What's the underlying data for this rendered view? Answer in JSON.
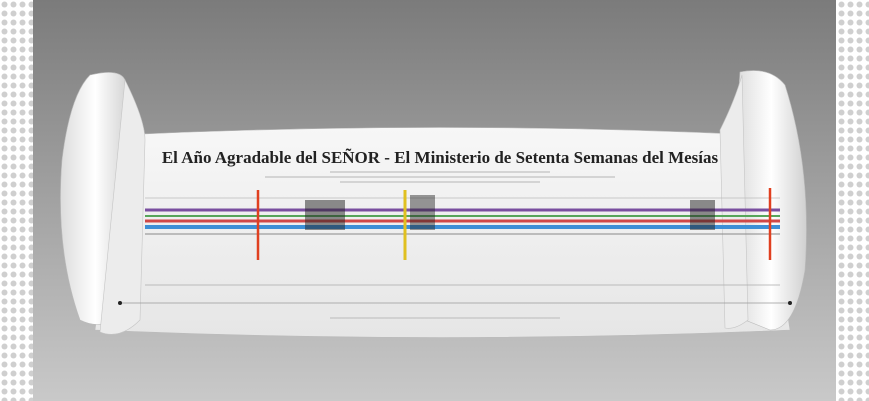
{
  "title": "El Año Agradable del SEÑOR - El Ministerio de Setenta Semanas del Mesías"
}
